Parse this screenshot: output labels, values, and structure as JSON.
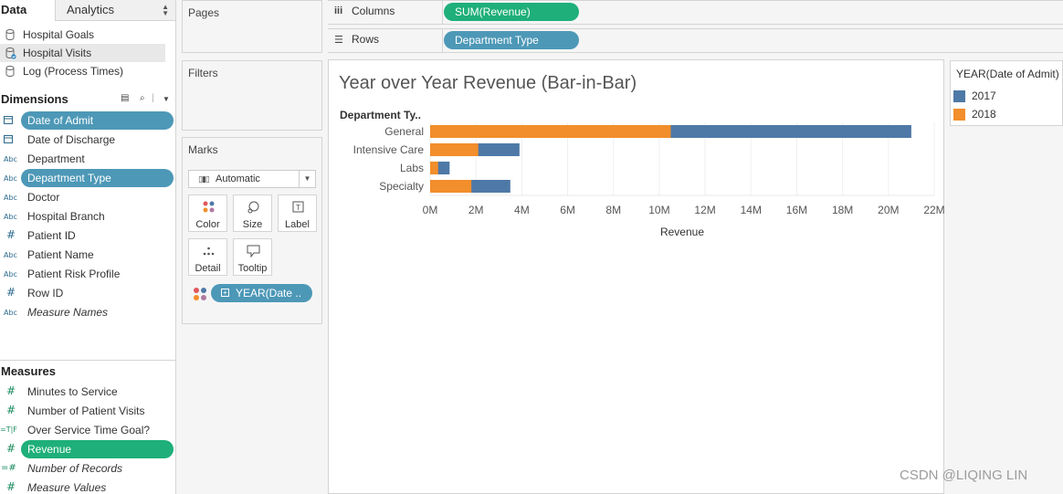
{
  "tabs": {
    "data": "Data",
    "analytics": "Analytics"
  },
  "datasources": [
    {
      "name": "Hospital Goals"
    },
    {
      "name": "Hospital Visits"
    },
    {
      "name": "Log (Process Times)"
    }
  ],
  "dimensions": {
    "header": "Dimensions",
    "fields": [
      {
        "type": "date",
        "label": "Date of Admit"
      },
      {
        "type": "date",
        "label": "Date of Discharge"
      },
      {
        "type": "Abc",
        "label": "Department"
      },
      {
        "type": "Abc",
        "label": "Department Type"
      },
      {
        "type": "Abc",
        "label": "Doctor"
      },
      {
        "type": "Abc",
        "label": "Hospital Branch"
      },
      {
        "type": "#",
        "label": "Patient ID"
      },
      {
        "type": "Abc",
        "label": "Patient Name"
      },
      {
        "type": "Abc",
        "label": "Patient Risk Profile"
      },
      {
        "type": "#",
        "label": "Row ID"
      },
      {
        "type": "Abc",
        "label": "Measure Names"
      }
    ]
  },
  "measures": {
    "header": "Measures",
    "fields": [
      {
        "type": "#",
        "label": "Minutes to Service"
      },
      {
        "type": "#",
        "label": "Number of Patient Visits"
      },
      {
        "type": "=T|F",
        "label": "Over Service Time Goal?"
      },
      {
        "type": "#",
        "label": "Revenue"
      },
      {
        "type": "=#",
        "label": "Number of Records"
      },
      {
        "type": "#",
        "label": "Measure Values"
      }
    ]
  },
  "cards": {
    "pages": "Pages",
    "filters": "Filters",
    "marks": "Marks",
    "mark_type": "Automatic",
    "mark_buttons": {
      "color": "Color",
      "size": "Size",
      "label": "Label",
      "detail": "Detail",
      "tooltip": "Tooltip"
    },
    "mark_pill": "YEAR(Date .."
  },
  "shelves": {
    "columns_label": "Columns",
    "columns_pill": "SUM(Revenue)",
    "rows_label": "Rows",
    "rows_pill": "Department Type"
  },
  "view": {
    "title": "Year over Year Revenue (Bar-in-Bar)"
  },
  "legend": {
    "title": "YEAR(Date of Admit)",
    "items": [
      {
        "name": "2017",
        "color": "#4e79a7"
      },
      {
        "name": "2018",
        "color": "#f28e2b"
      }
    ]
  },
  "colors": {
    "pill_blue": "#4d98b7",
    "pill_green": "#1eaf7a",
    "bar_2017": "#4e79a7",
    "bar_2018": "#f28e2b"
  },
  "watermark": "CSDN @LIQING LIN",
  "chart_data": {
    "type": "bar",
    "orientation": "horizontal",
    "row_header": "Department Ty..",
    "categories": [
      "General",
      "Intensive Care",
      "Labs",
      "Specialty"
    ],
    "series": [
      {
        "name": "2017",
        "values": [
          21.0,
          3.9,
          0.85,
          3.5
        ]
      },
      {
        "name": "2018",
        "values": [
          10.5,
          2.1,
          0.35,
          1.8
        ]
      }
    ],
    "xlabel": "Revenue",
    "xticks": [
      "0M",
      "2M",
      "4M",
      "6M",
      "8M",
      "10M",
      "12M",
      "14M",
      "16M",
      "18M",
      "20M",
      "22M"
    ],
    "xlim": [
      0,
      22
    ],
    "unit": "M"
  }
}
